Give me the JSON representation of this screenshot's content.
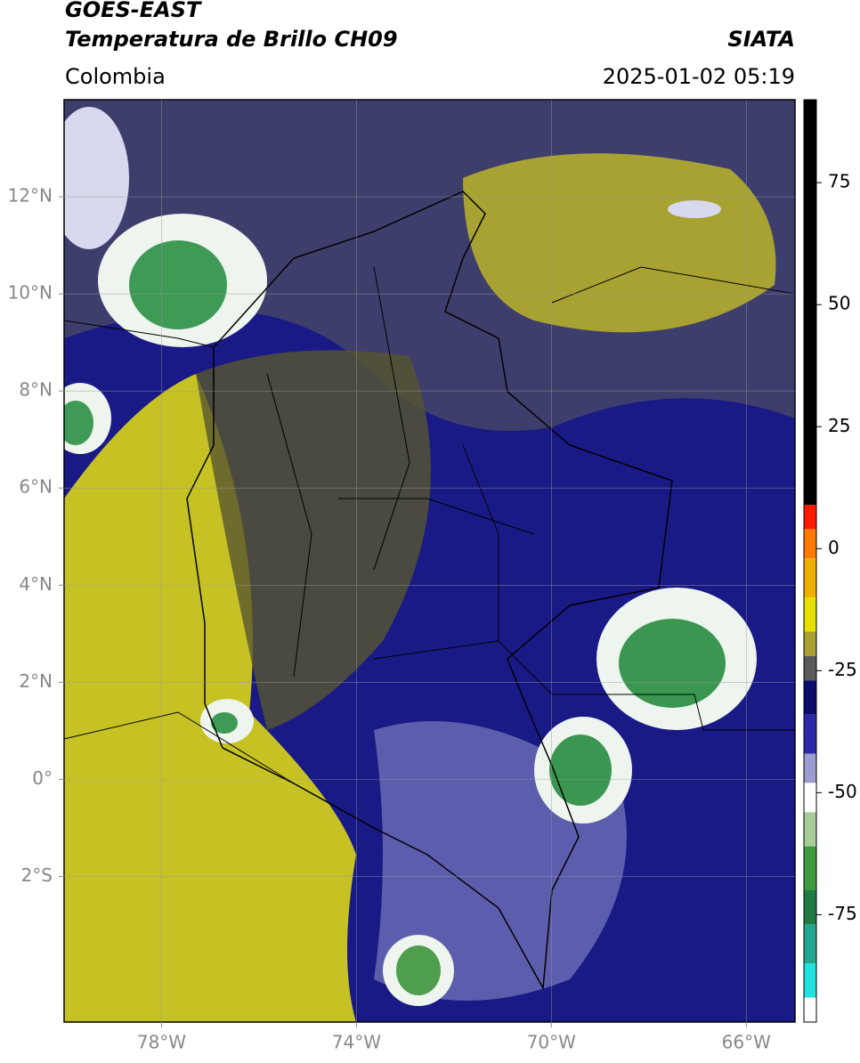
{
  "header": {
    "title": "GOES-EAST",
    "subtitle": "Temperatura de Brillo CH09",
    "source": "SIATA",
    "region": "Colombia",
    "datetime": "2025-01-02 05:19"
  },
  "map": {
    "lon_range": [
      -80,
      -65
    ],
    "lat_range": [
      -5,
      14
    ],
    "grid": true,
    "lon_ticks": [
      {
        "value": -78,
        "label": "78°W"
      },
      {
        "value": -74,
        "label": "74°W"
      },
      {
        "value": -70,
        "label": "70°W"
      },
      {
        "value": -66,
        "label": "66°W"
      }
    ],
    "lat_ticks": [
      {
        "value": 12,
        "label": "12°N"
      },
      {
        "value": 10,
        "label": "10°N"
      },
      {
        "value": 8,
        "label": "8°N"
      },
      {
        "value": 6,
        "label": "6°N"
      },
      {
        "value": 4,
        "label": "4°N"
      },
      {
        "value": 2,
        "label": "2°N"
      },
      {
        "value": 0,
        "label": "0°"
      },
      {
        "value": -2,
        "label": "2°S"
      }
    ]
  },
  "colorbar": {
    "range": [
      -97,
      92
    ],
    "ticks": [
      75,
      50,
      25,
      0,
      -25,
      -50,
      -75
    ],
    "bands": [
      {
        "from": 92,
        "color": "#000000"
      },
      {
        "from": 9,
        "color": "#ff1a00"
      },
      {
        "from": 4,
        "color": "#ff7a00"
      },
      {
        "from": -2,
        "color": "#f0b000"
      },
      {
        "from": -10,
        "color": "#e6e000"
      },
      {
        "from": -17,
        "color": "#a8a030"
      },
      {
        "from": -22,
        "color": "#5a5a5a"
      },
      {
        "from": -27,
        "color": "#0c0c6e"
      },
      {
        "from": -34,
        "color": "#2a2aa8"
      },
      {
        "from": -42,
        "color": "#9c9cd0"
      },
      {
        "from": -48,
        "color": "#ffffff"
      },
      {
        "from": -54,
        "color": "#a8cc98"
      },
      {
        "from": -61,
        "color": "#3f9a3f"
      },
      {
        "from": -70,
        "color": "#1f7a46"
      },
      {
        "from": -77,
        "color": "#20a890"
      },
      {
        "from": -85,
        "color": "#20e0e0"
      },
      {
        "from": -92,
        "color": "#ffffff"
      }
    ]
  }
}
